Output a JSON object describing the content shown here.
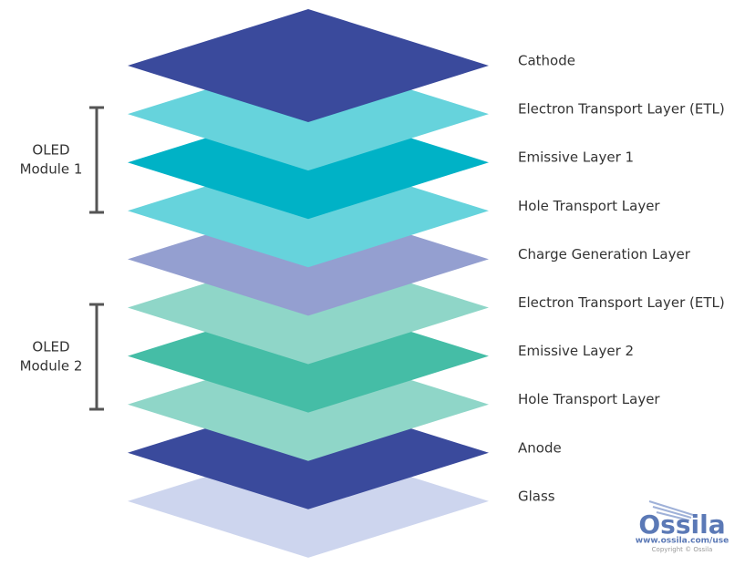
{
  "layers": [
    {
      "label": "Cathode",
      "color": "#3a4a9c"
    },
    {
      "label": "Electron Transport Layer (ETL)",
      "color": "#66d3dc"
    },
    {
      "label": "Emissive Layer 1",
      "color": "#00b2c6"
    },
    {
      "label": "Hole Transport Layer",
      "color": "#66d3dc"
    },
    {
      "label": "Charge Generation Layer",
      "color": "#949fd0"
    },
    {
      "label": "Electron Transport Layer (ETL)",
      "color": "#8fd6c8"
    },
    {
      "label": "Emissive Layer 2",
      "color": "#45bda6"
    },
    {
      "label": "Hole Transport Layer",
      "color": "#8fd6c8"
    },
    {
      "label": "Anode",
      "color": "#3a4a9c"
    },
    {
      "label": "Glass",
      "color": "#cdd5ee"
    }
  ],
  "modules": [
    {
      "lines": [
        "OLED",
        "Module 1"
      ]
    },
    {
      "lines": [
        "OLED",
        "Module 2"
      ]
    }
  ],
  "logo": {
    "name": "Ossila",
    "url": "www.ossila.com/use",
    "copyright": "Copyright © Ossila"
  }
}
